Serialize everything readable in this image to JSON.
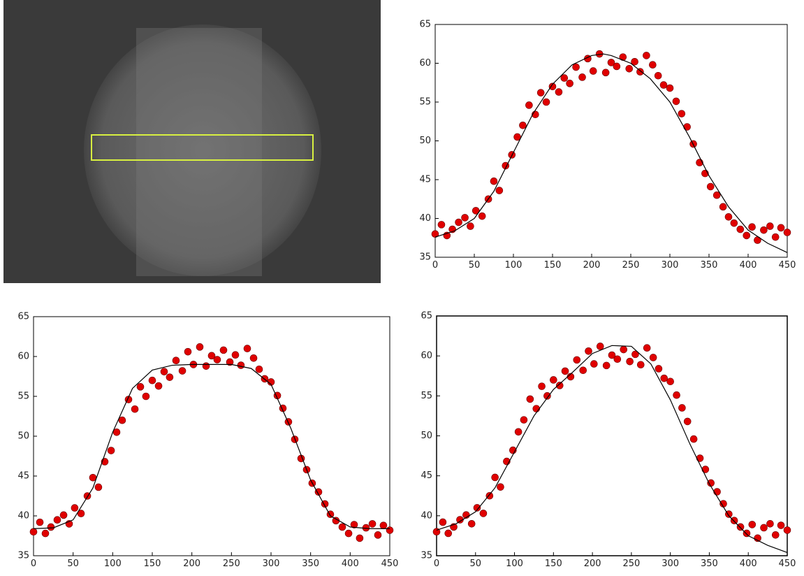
{
  "chart_data": [
    {
      "type": "scatter",
      "xlim": [
        0,
        450
      ],
      "ylim": [
        35,
        65
      ],
      "xticks": [
        0,
        50,
        100,
        150,
        200,
        250,
        300,
        350,
        400,
        450
      ],
      "yticks": [
        35,
        40,
        45,
        50,
        55,
        60,
        65
      ],
      "series": [
        {
          "type": "scatter",
          "color": "#e00000",
          "x": [
            0,
            8,
            15,
            22,
            30,
            38,
            45,
            52,
            60,
            68,
            75,
            82,
            90,
            98,
            105,
            112,
            120,
            128,
            135,
            142,
            150,
            158,
            165,
            172,
            180,
            188,
            195,
            202,
            210,
            218,
            225,
            232,
            240,
            248,
            255,
            262,
            270,
            278,
            285,
            292,
            300,
            308,
            315,
            322,
            330,
            338,
            345,
            352,
            360,
            368,
            375,
            382,
            390,
            398,
            405,
            412,
            420,
            428,
            435,
            442,
            450
          ],
          "values": [
            38.0,
            39.2,
            37.8,
            38.6,
            39.5,
            40.1,
            39.0,
            41.0,
            40.3,
            42.5,
            44.8,
            43.6,
            46.8,
            48.2,
            50.5,
            52.0,
            54.6,
            53.4,
            56.2,
            55.0,
            57.0,
            56.3,
            58.1,
            57.4,
            59.5,
            58.2,
            60.6,
            59.0,
            61.2,
            58.8,
            60.1,
            59.6,
            60.8,
            59.3,
            60.2,
            58.9,
            61.0,
            59.8,
            58.4,
            57.2,
            56.8,
            55.1,
            53.5,
            51.8,
            49.6,
            47.2,
            45.8,
            44.1,
            43.0,
            41.5,
            40.2,
            39.4,
            38.6,
            37.8,
            38.9,
            37.2,
            38.5,
            39.0,
            37.6,
            38.8,
            38.2
          ]
        },
        {
          "type": "line",
          "color": "#000000",
          "x": [
            0,
            25,
            50,
            75,
            100,
            125,
            150,
            175,
            200,
            215,
            225,
            250,
            275,
            300,
            325,
            350,
            375,
            400,
            425,
            450
          ],
          "values": [
            37.6,
            38.4,
            40.0,
            43.5,
            48.5,
            53.5,
            57.3,
            59.8,
            61.0,
            61.2,
            61.0,
            60.0,
            58.0,
            55.0,
            50.5,
            45.5,
            41.5,
            38.5,
            36.8,
            35.6
          ]
        }
      ]
    },
    {
      "type": "scatter",
      "xlim": [
        0,
        450
      ],
      "ylim": [
        35,
        65
      ],
      "xticks": [
        0,
        50,
        100,
        150,
        200,
        250,
        300,
        350,
        400,
        450
      ],
      "yticks": [
        35,
        40,
        45,
        50,
        55,
        60,
        65
      ],
      "series": [
        {
          "type": "scatter",
          "color": "#e00000",
          "x": [
            0,
            8,
            15,
            22,
            30,
            38,
            45,
            52,
            60,
            68,
            75,
            82,
            90,
            98,
            105,
            112,
            120,
            128,
            135,
            142,
            150,
            158,
            165,
            172,
            180,
            188,
            195,
            202,
            210,
            218,
            225,
            232,
            240,
            248,
            255,
            262,
            270,
            278,
            285,
            292,
            300,
            308,
            315,
            322,
            330,
            338,
            345,
            352,
            360,
            368,
            375,
            382,
            390,
            398,
            405,
            412,
            420,
            428,
            435,
            442,
            450
          ],
          "values": [
            38.0,
            39.2,
            37.8,
            38.6,
            39.5,
            40.1,
            39.0,
            41.0,
            40.3,
            42.5,
            44.8,
            43.6,
            46.8,
            48.2,
            50.5,
            52.0,
            54.6,
            53.4,
            56.2,
            55.0,
            57.0,
            56.3,
            58.1,
            57.4,
            59.5,
            58.2,
            60.6,
            59.0,
            61.2,
            58.8,
            60.1,
            59.6,
            60.8,
            59.3,
            60.2,
            58.9,
            61.0,
            59.8,
            58.4,
            57.2,
            56.8,
            55.1,
            53.5,
            51.8,
            49.6,
            47.2,
            45.8,
            44.1,
            43.0,
            41.5,
            40.2,
            39.4,
            38.6,
            37.8,
            38.9,
            37.2,
            38.5,
            39.0,
            37.6,
            38.8,
            38.2
          ]
        },
        {
          "type": "line",
          "color": "#000000",
          "x": [
            0,
            25,
            50,
            75,
            100,
            125,
            150,
            175,
            200,
            250,
            275,
            300,
            325,
            350,
            375,
            400,
            425,
            450
          ],
          "values": [
            38.4,
            38.5,
            39.5,
            43.5,
            50.5,
            56.0,
            58.3,
            58.9,
            59.0,
            59.0,
            58.5,
            56.5,
            51.0,
            44.5,
            40.0,
            38.6,
            38.4,
            38.4
          ]
        }
      ]
    },
    {
      "type": "scatter",
      "xlim": [
        0,
        450
      ],
      "ylim": [
        35,
        65
      ],
      "xticks": [
        0,
        50,
        100,
        150,
        200,
        250,
        300,
        350,
        400,
        450
      ],
      "yticks": [
        35,
        40,
        45,
        50,
        55,
        60,
        65
      ],
      "series": [
        {
          "type": "scatter",
          "color": "#e00000",
          "x": [
            0,
            8,
            15,
            22,
            30,
            38,
            45,
            52,
            60,
            68,
            75,
            82,
            90,
            98,
            105,
            112,
            120,
            128,
            135,
            142,
            150,
            158,
            165,
            172,
            180,
            188,
            195,
            202,
            210,
            218,
            225,
            232,
            240,
            248,
            255,
            262,
            270,
            278,
            285,
            292,
            300,
            308,
            315,
            322,
            330,
            338,
            345,
            352,
            360,
            368,
            375,
            382,
            390,
            398,
            405,
            412,
            420,
            428,
            435,
            442,
            450
          ],
          "values": [
            38.0,
            39.2,
            37.8,
            38.6,
            39.5,
            40.1,
            39.0,
            41.0,
            40.3,
            42.5,
            44.8,
            43.6,
            46.8,
            48.2,
            50.5,
            52.0,
            54.6,
            53.4,
            56.2,
            55.0,
            57.0,
            56.3,
            58.1,
            57.4,
            59.5,
            58.2,
            60.6,
            59.0,
            61.2,
            58.8,
            60.1,
            59.6,
            60.8,
            59.3,
            60.2,
            58.9,
            61.0,
            59.8,
            58.4,
            57.2,
            56.8,
            55.1,
            53.5,
            51.8,
            49.6,
            47.2,
            45.8,
            44.1,
            43.0,
            41.5,
            40.2,
            39.4,
            38.6,
            37.8,
            38.9,
            37.2,
            38.5,
            39.0,
            37.6,
            38.8,
            38.2
          ]
        },
        {
          "type": "line",
          "color": "#000000",
          "x": [
            0,
            25,
            50,
            75,
            100,
            125,
            150,
            175,
            200,
            225,
            250,
            275,
            300,
            325,
            350,
            375,
            400,
            425,
            450
          ],
          "values": [
            38.2,
            39.0,
            40.5,
            43.5,
            48.0,
            52.5,
            55.8,
            58.0,
            60.3,
            61.3,
            61.2,
            59.0,
            54.5,
            49.0,
            44.0,
            40.0,
            37.5,
            36.3,
            35.4
          ]
        }
      ]
    }
  ]
}
